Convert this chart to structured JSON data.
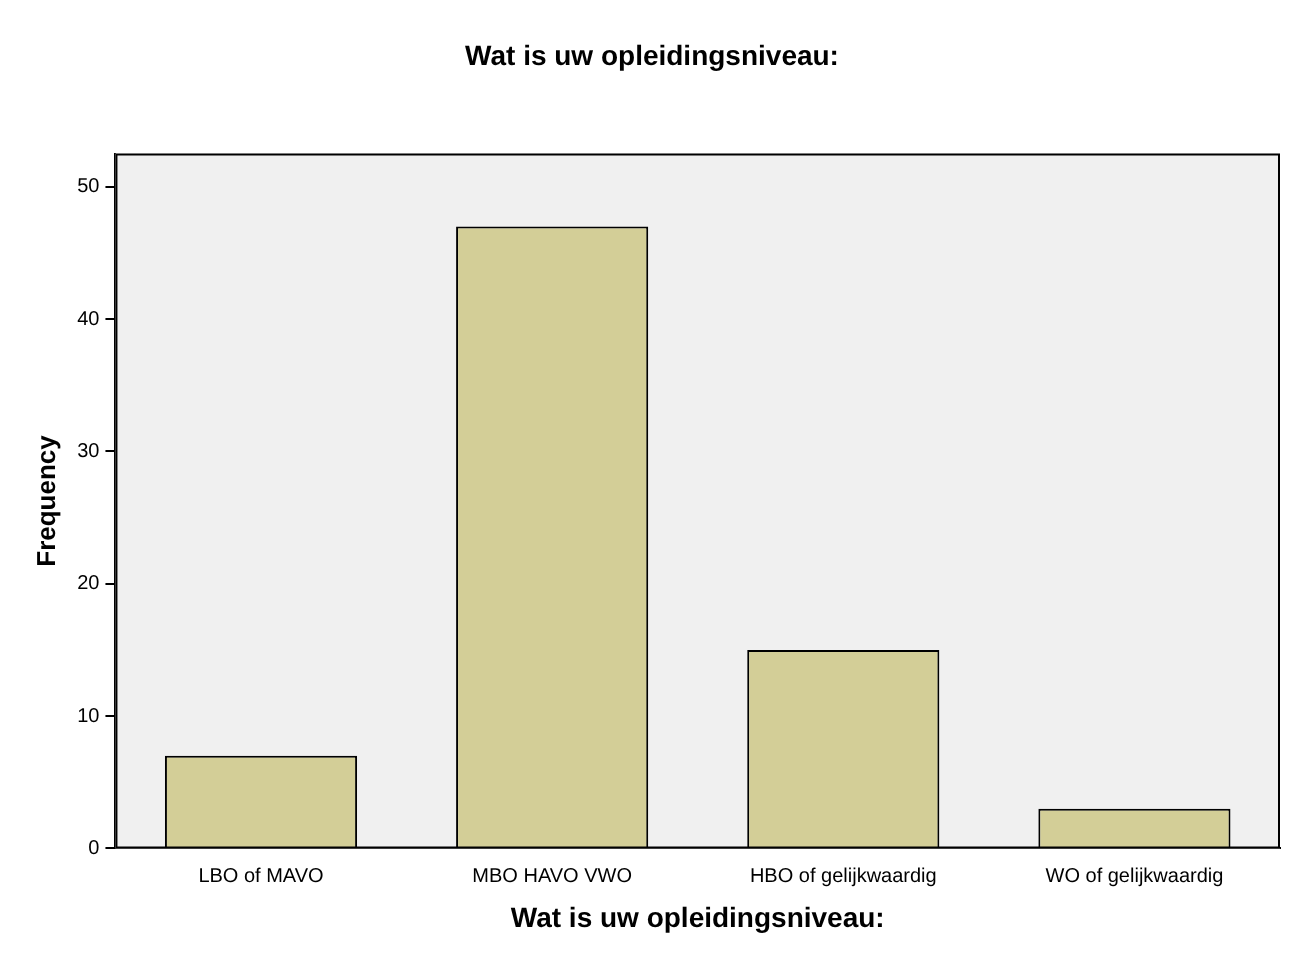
{
  "chart_data": {
    "type": "bar",
    "title": "Wat is uw opleidingsniveau:",
    "xlabel": "Wat is uw opleidingsniveau:",
    "ylabel": "Frequency",
    "categories": [
      "LBO of MAVO",
      "MBO HAVO VWO",
      "HBO of gelijkwaardig",
      "WO of gelijkwaardig"
    ],
    "values": [
      7,
      47,
      15,
      3
    ],
    "color": "#d3ce97",
    "ylim": [
      0,
      52.5
    ],
    "yticks": [
      0,
      10,
      20,
      30,
      40,
      50
    ],
    "grid": false,
    "legend": false
  }
}
